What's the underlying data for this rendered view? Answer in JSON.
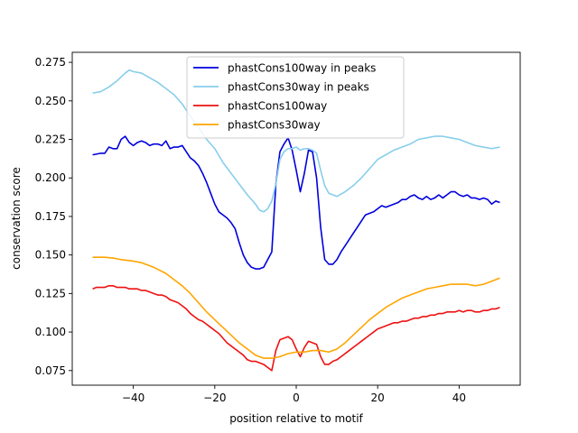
{
  "chart_data": {
    "type": "line",
    "title": "",
    "xlabel": "position relative to motif",
    "ylabel": "conservation score",
    "xlim": [
      -55,
      55
    ],
    "ylim": [
      0.0655,
      0.2815
    ],
    "xticks": [
      -40,
      -20,
      0,
      20,
      40
    ],
    "yticks": [
      0.075,
      0.1,
      0.125,
      0.15,
      0.175,
      0.2,
      0.225,
      0.25,
      0.275
    ],
    "ytick_labels": [
      "0.075",
      "0.100",
      "0.125",
      "0.150",
      "0.175",
      "0.200",
      "0.225",
      "0.250",
      "0.275"
    ],
    "grid": false,
    "legend_position": "top-center",
    "series": [
      {
        "name": "phastCons100way in peaks",
        "color": "#0000dd",
        "x": [
          -50,
          -48,
          -47,
          -46,
          -45,
          -44,
          -43,
          -42,
          -41,
          -40,
          -39,
          -38,
          -37,
          -36,
          -35,
          -34,
          -33,
          -32,
          -31,
          -30,
          -29,
          -28,
          -27,
          -26,
          -25,
          -24,
          -23,
          -22,
          -21,
          -20,
          -19,
          -18,
          -17,
          -16,
          -15,
          -14,
          -13,
          -12,
          -11,
          -10,
          -9,
          -8,
          -7,
          -6,
          -5,
          -4,
          -3,
          -2,
          -1,
          0,
          1,
          2,
          3,
          4,
          5,
          6,
          7,
          8,
          9,
          10,
          11,
          12,
          13,
          14,
          15,
          16,
          17,
          18,
          19,
          20,
          21,
          22,
          23,
          24,
          25,
          26,
          27,
          28,
          29,
          30,
          31,
          32,
          33,
          34,
          35,
          36,
          37,
          38,
          39,
          40,
          41,
          42,
          43,
          44,
          45,
          46,
          47,
          48,
          49,
          50
        ],
        "values": [
          0.215,
          0.216,
          0.216,
          0.22,
          0.219,
          0.219,
          0.225,
          0.227,
          0.223,
          0.221,
          0.223,
          0.224,
          0.223,
          0.221,
          0.222,
          0.222,
          0.221,
          0.224,
          0.219,
          0.22,
          0.22,
          0.221,
          0.217,
          0.213,
          0.211,
          0.208,
          0.203,
          0.197,
          0.19,
          0.183,
          0.178,
          0.176,
          0.174,
          0.171,
          0.167,
          0.158,
          0.15,
          0.145,
          0.142,
          0.141,
          0.141,
          0.142,
          0.147,
          0.152,
          0.196,
          0.217,
          0.222,
          0.226,
          0.218,
          0.205,
          0.191,
          0.203,
          0.218,
          0.217,
          0.2,
          0.168,
          0.147,
          0.144,
          0.144,
          0.147,
          0.152,
          0.156,
          0.16,
          0.164,
          0.168,
          0.172,
          0.176,
          0.177,
          0.178,
          0.18,
          0.182,
          0.181,
          0.182,
          0.183,
          0.184,
          0.186,
          0.186,
          0.188,
          0.189,
          0.187,
          0.186,
          0.188,
          0.186,
          0.187,
          0.189,
          0.187,
          0.189,
          0.191,
          0.191,
          0.189,
          0.188,
          0.189,
          0.187,
          0.187,
          0.186,
          0.187,
          0.186,
          0.183,
          0.185,
          0.184
        ],
        "values_note": ""
      },
      {
        "name": "phastCons30way in peaks",
        "color": "#87ceeb",
        "x": [
          -50,
          -48,
          -46,
          -44,
          -42,
          -41,
          -40,
          -38,
          -36,
          -34,
          -32,
          -30,
          -28,
          -26,
          -24,
          -22,
          -20,
          -18,
          -16,
          -14,
          -12,
          -10,
          -9,
          -8,
          -7,
          -6,
          -5,
          -4,
          -3,
          -2,
          -1,
          0,
          1,
          2,
          3,
          4,
          5,
          6,
          7,
          8,
          9,
          10,
          12,
          14,
          16,
          18,
          20,
          22,
          24,
          26,
          28,
          30,
          32,
          34,
          36,
          38,
          40,
          42,
          44,
          46,
          48,
          50
        ],
        "values": [
          0.255,
          0.256,
          0.259,
          0.263,
          0.268,
          0.27,
          0.269,
          0.268,
          0.265,
          0.262,
          0.258,
          0.254,
          0.248,
          0.24,
          0.233,
          0.225,
          0.219,
          0.21,
          0.203,
          0.196,
          0.189,
          0.183,
          0.179,
          0.178,
          0.18,
          0.185,
          0.196,
          0.212,
          0.217,
          0.219,
          0.219,
          0.22,
          0.218,
          0.219,
          0.219,
          0.218,
          0.216,
          0.205,
          0.195,
          0.19,
          0.189,
          0.188,
          0.191,
          0.195,
          0.2,
          0.206,
          0.212,
          0.215,
          0.218,
          0.22,
          0.222,
          0.225,
          0.226,
          0.227,
          0.227,
          0.226,
          0.225,
          0.223,
          0.221,
          0.22,
          0.219,
          0.22
        ]
      },
      {
        "name": "phastCons100way",
        "color": "#ee1111",
        "x": [
          -50,
          -49,
          -48,
          -47,
          -46,
          -45,
          -44,
          -43,
          -42,
          -41,
          -40,
          -39,
          -38,
          -37,
          -36,
          -35,
          -34,
          -33,
          -32,
          -31,
          -30,
          -29,
          -28,
          -27,
          -26,
          -25,
          -24,
          -23,
          -22,
          -21,
          -20,
          -19,
          -18,
          -17,
          -16,
          -15,
          -14,
          -13,
          -12,
          -11,
          -10,
          -9,
          -8,
          -7,
          -6,
          -5,
          -4,
          -3,
          -2,
          -1,
          0,
          1,
          2,
          3,
          4,
          5,
          6,
          7,
          8,
          9,
          10,
          11,
          12,
          13,
          14,
          15,
          16,
          17,
          18,
          19,
          20,
          21,
          22,
          23,
          24,
          25,
          26,
          27,
          28,
          29,
          30,
          31,
          32,
          33,
          34,
          35,
          36,
          37,
          38,
          39,
          40,
          41,
          42,
          43,
          44,
          45,
          46,
          47,
          48,
          49,
          50
        ],
        "values": [
          0.128,
          0.129,
          0.129,
          0.129,
          0.13,
          0.13,
          0.129,
          0.129,
          0.129,
          0.128,
          0.128,
          0.128,
          0.127,
          0.127,
          0.126,
          0.125,
          0.124,
          0.124,
          0.123,
          0.121,
          0.12,
          0.119,
          0.117,
          0.115,
          0.112,
          0.11,
          0.108,
          0.107,
          0.105,
          0.103,
          0.101,
          0.099,
          0.096,
          0.093,
          0.091,
          0.089,
          0.087,
          0.085,
          0.082,
          0.081,
          0.081,
          0.08,
          0.079,
          0.077,
          0.075,
          0.088,
          0.095,
          0.096,
          0.097,
          0.095,
          0.089,
          0.084,
          0.09,
          0.094,
          0.093,
          0.092,
          0.084,
          0.079,
          0.079,
          0.081,
          0.082,
          0.084,
          0.086,
          0.088,
          0.09,
          0.092,
          0.094,
          0.096,
          0.098,
          0.1,
          0.102,
          0.103,
          0.104,
          0.105,
          0.106,
          0.106,
          0.107,
          0.107,
          0.108,
          0.109,
          0.109,
          0.11,
          0.11,
          0.111,
          0.111,
          0.112,
          0.112,
          0.113,
          0.113,
          0.113,
          0.114,
          0.113,
          0.114,
          0.114,
          0.113,
          0.113,
          0.114,
          0.114,
          0.115,
          0.115,
          0.116
        ]
      },
      {
        "name": "phastCons30way",
        "color": "#ffa500",
        "x": [
          -50,
          -47,
          -45,
          -43,
          -40,
          -38,
          -35,
          -32,
          -30,
          -28,
          -26,
          -24,
          -22,
          -20,
          -18,
          -16,
          -14,
          -12,
          -10,
          -8,
          -6,
          -4,
          -2,
          0,
          2,
          4,
          6,
          8,
          10,
          12,
          14,
          16,
          18,
          20,
          22,
          24,
          26,
          28,
          30,
          32,
          34,
          36,
          38,
          40,
          42,
          44,
          46,
          48,
          50
        ],
        "values": [
          0.1485,
          0.1485,
          0.148,
          0.147,
          0.146,
          0.145,
          0.142,
          0.138,
          0.134,
          0.13,
          0.125,
          0.119,
          0.113,
          0.108,
          0.103,
          0.098,
          0.093,
          0.089,
          0.085,
          0.083,
          0.083,
          0.084,
          0.086,
          0.087,
          0.087,
          0.088,
          0.088,
          0.087,
          0.089,
          0.093,
          0.098,
          0.103,
          0.108,
          0.112,
          0.116,
          0.119,
          0.122,
          0.124,
          0.126,
          0.128,
          0.129,
          0.13,
          0.131,
          0.131,
          0.131,
          0.13,
          0.131,
          0.133,
          0.135
        ]
      }
    ]
  }
}
